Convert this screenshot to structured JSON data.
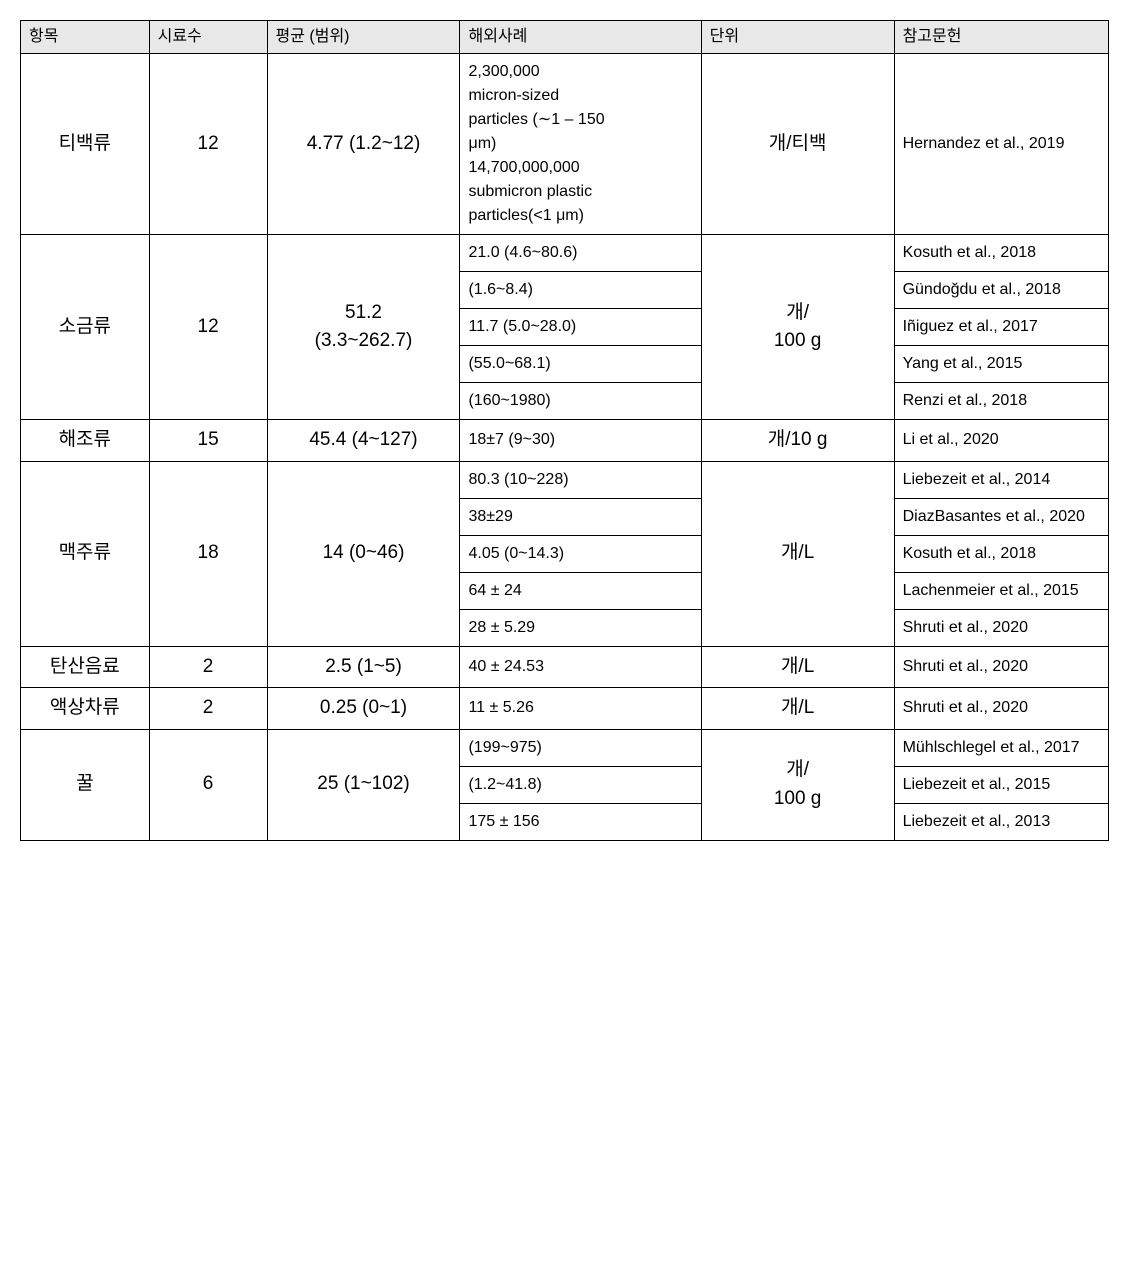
{
  "headers": {
    "item": "항목",
    "samples": "시료수",
    "mean": "평균 (범위)",
    "case": "해외사례",
    "unit": "단위",
    "ref": "참고문헌"
  },
  "groups": [
    {
      "item": "티백류",
      "samples": "12",
      "mean": "4.77 (1.2~12)",
      "unit": "개/티백",
      "rows": [
        {
          "case": "2,300,000\nmicron-sized\nparticles (∼1 – 150\nμm)\n14,700,000,000\nsubmicron plastic\nparticles(<1 μm)",
          "ref": "Hernandez et al., 2019"
        }
      ]
    },
    {
      "item": "소금류",
      "samples": "12",
      "mean": "51.2\n(3.3~262.7)",
      "unit": "개/\n100 g",
      "rows": [
        {
          "case": "21.0 (4.6~80.6)",
          "ref": "Kosuth et al., 2018"
        },
        {
          "case": "(1.6~8.4)",
          "ref": "Gündoğdu et al., 2018"
        },
        {
          "case": "11.7 (5.0~28.0)",
          "ref": "Iñiguez et al., 2017"
        },
        {
          "case": "(55.0~68.1)",
          "ref": "Yang et al., 2015"
        },
        {
          "case": "(160~1980)",
          "ref": "Renzi et al., 2018"
        }
      ]
    },
    {
      "item": "해조류",
      "samples": "15",
      "mean": "45.4 (4~127)",
      "unit": "개/10 g",
      "rows": [
        {
          "case": "18±7 (9~30)",
          "ref": "Li et al., 2020"
        }
      ]
    },
    {
      "item": "맥주류",
      "samples": "18",
      "mean": "14 (0~46)",
      "unit": "개/L",
      "rows": [
        {
          "case": "80.3 (10~228)",
          "ref": "Liebezeit et al., 2014"
        },
        {
          "case": "38±29",
          "ref": "DiazBasantes et al., 2020"
        },
        {
          "case": "4.05 (0~14.3)",
          "ref": "Kosuth et al., 2018"
        },
        {
          "case": "64 ± 24",
          "ref": "Lachenmeier et al., 2015"
        },
        {
          "case": "28 ± 5.29",
          "ref": "Shruti et al., 2020"
        }
      ]
    },
    {
      "item": "탄산음료",
      "samples": "2",
      "mean": "2.5 (1~5)",
      "unit": "개/L",
      "rows": [
        {
          "case": "40 ± 24.53",
          "ref": "Shruti et al., 2020"
        }
      ]
    },
    {
      "item": "액상차류",
      "samples": "2",
      "mean": "0.25 (0~1)",
      "unit": "개/L",
      "rows": [
        {
          "case": "11 ± 5.26",
          "ref": "Shruti et al., 2020"
        }
      ]
    },
    {
      "item": "꿀",
      "samples": "6",
      "mean": "25 (1~102)",
      "unit": "개/\n100 g",
      "rows": [
        {
          "case": "(199~975)",
          "ref": "Mühlschlegel et al., 2017"
        },
        {
          "case": "(1.2~41.8)",
          "ref": "Liebezeit et al., 2015"
        },
        {
          "case": "175 ± 156",
          "ref": "Liebezeit et al., 2013"
        }
      ]
    }
  ]
}
